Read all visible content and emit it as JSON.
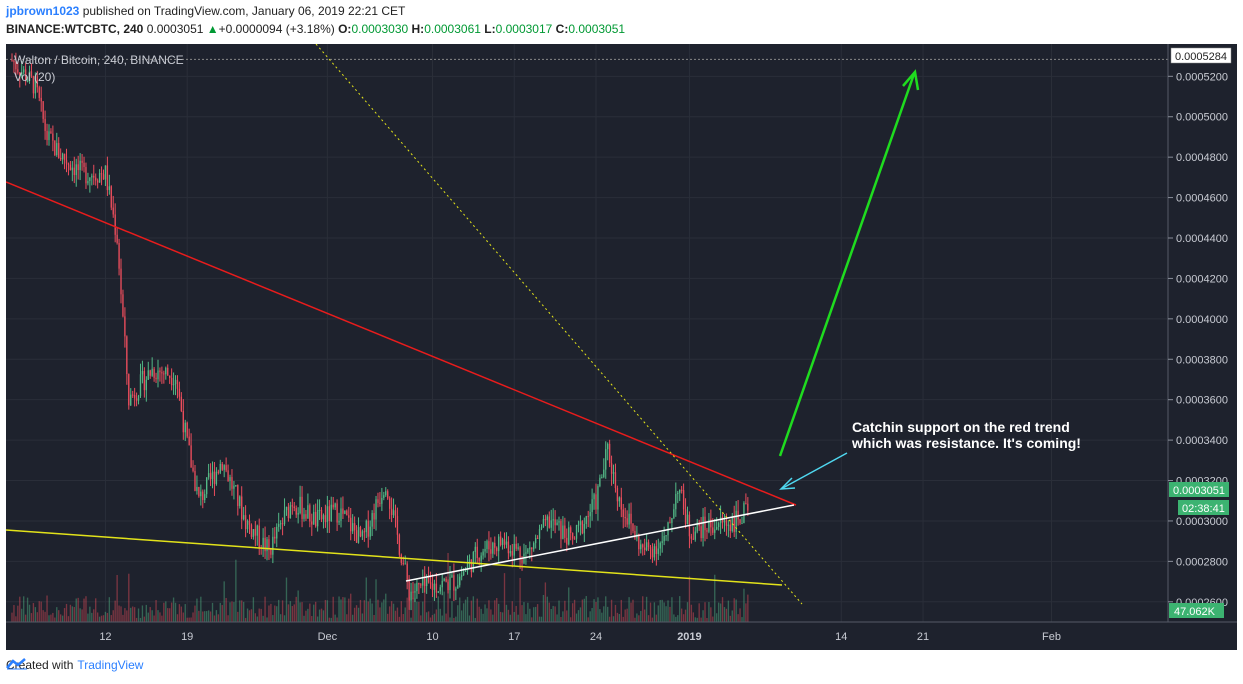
{
  "header": {
    "username": "jpbrown1023",
    "published_text": " published on TradingView.com, January 06, 2019 22:21 CET",
    "symbol": "BINANCE:WTCBTC, 240",
    "last": "0.0003051",
    "change_arrow": "▲",
    "change": "+0.0000094 (+3.18%)",
    "open_label": "O:",
    "open": "0.0003030",
    "high_label": "H:",
    "high": "0.0003061",
    "low_label": "L:",
    "low": "0.0003017",
    "close_label": "C:",
    "close": "0.0003051"
  },
  "legend": {
    "title": "Walton / Bitcoin, 240, BINANCE",
    "volume": "Vol (20)"
  },
  "annotation": {
    "line1": "Catchin support on the red trend",
    "line2": "which was resistance. It's coming!"
  },
  "price_scale": {
    "ticks": [
      "0.0005200",
      "0.0005000",
      "0.0004800",
      "0.0004600",
      "0.0004400",
      "0.0004200",
      "0.0004000",
      "0.0003800",
      "0.0003600",
      "0.0003400",
      "0.0003200",
      "0.0003000",
      "0.0002800",
      "0.0002600"
    ],
    "top_label": "0.0005284",
    "current_price": "0.0003051",
    "countdown": "02:38:41",
    "volume_label": "47.062K"
  },
  "time_scale": {
    "ticks": [
      "12",
      "19",
      "Dec",
      "10",
      "17",
      "24",
      "2019",
      "14",
      "21",
      "Feb"
    ]
  },
  "footer": {
    "created_with": "Created with",
    "brand": "TradingView"
  },
  "chart_data": {
    "type": "candlestick",
    "title": "Walton / Bitcoin, 240, BINANCE",
    "symbol": "BINANCE:WTCBTC",
    "interval": "240",
    "ylim": [
      0.00025,
      0.000535
    ],
    "close_path": [
      [
        "Nov 04",
        0.000528
      ],
      [
        "Nov 06",
        0.000515
      ],
      [
        "Nov 07",
        0.00049
      ],
      [
        "Nov 08",
        0.000482
      ],
      [
        "Nov 10",
        0.000472
      ],
      [
        "Nov 12",
        0.000472
      ],
      [
        "Nov 13",
        0.00044
      ],
      [
        "Nov 14",
        0.00036
      ],
      [
        "Nov 16",
        0.000375
      ],
      [
        "Nov 18",
        0.000372
      ],
      [
        "Nov 19",
        0.000338
      ],
      [
        "Nov 20",
        0.00031
      ],
      [
        "Nov 22",
        0.00033
      ],
      [
        "Nov 24",
        0.0003
      ],
      [
        "Nov 26",
        0.000285
      ],
      [
        "Nov 28",
        0.00031
      ],
      [
        "Nov 30",
        0.0003
      ],
      [
        "Dec 02",
        0.000305
      ],
      [
        "Dec 04",
        0.00029
      ],
      [
        "Dec 06",
        0.00032
      ],
      [
        "Dec 08",
        0.000265
      ],
      [
        "Dec 10",
        0.000268
      ],
      [
        "Dec 12",
        0.00027
      ],
      [
        "Dec 14",
        0.000285
      ],
      [
        "Dec 16",
        0.00029
      ],
      [
        "Dec 18",
        0.000283
      ],
      [
        "Dec 20",
        0.0003
      ],
      [
        "Dec 22",
        0.00029
      ],
      [
        "Dec 24",
        0.00031
      ],
      [
        "Dec 25",
        0.000335
      ],
      [
        "Dec 26",
        0.00031
      ],
      [
        "Dec 28",
        0.000285
      ],
      [
        "Dec 30",
        0.00029
      ],
      [
        "Dec 31",
        0.000318
      ],
      [
        "Jan 01",
        0.000295
      ],
      [
        "Jan 03",
        0.000298
      ],
      [
        "Jan 05",
        0.0003
      ],
      [
        "Jan 06",
        0.0003051
      ]
    ],
    "last_price": 0.0003051,
    "volume_last": "47.062K"
  },
  "colors": {
    "background": "#1e222d",
    "grid": "#2a2e39",
    "up": "#53b987",
    "down": "#eb4d5c",
    "red_trend": "#e81c1c",
    "yellow_trend": "#e3e31a",
    "white_trend": "#ffffff",
    "green_arrow": "#1fdc1f",
    "cyan_arrow": "#4fd8f0",
    "price_label_bg": "#3cb371"
  }
}
